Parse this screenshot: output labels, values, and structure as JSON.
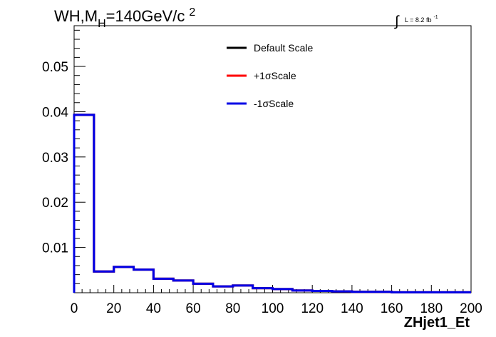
{
  "chart_data": {
    "type": "line",
    "title_parts": {
      "main": "WH,M",
      "sub": "H",
      "mid": "=140GeV/c",
      "sup": "2"
    },
    "lumi": {
      "integral": "∫",
      "text": "L = 8.2 fb",
      "sup": "-1"
    },
    "xlabel": "ZHjet1_Et",
    "ylabel": "",
    "xlim": [
      0,
      200
    ],
    "ylim": [
      0,
      0.059
    ],
    "x_ticks": [
      0,
      20,
      40,
      60,
      80,
      100,
      120,
      140,
      160,
      180,
      200
    ],
    "y_ticks": [
      0.01,
      0.02,
      0.03,
      0.04,
      0.05
    ],
    "y_tick_labels": [
      "0.01",
      "0.02",
      "0.03",
      "0.04",
      "0.05"
    ],
    "bin_edges": [
      0,
      10,
      20,
      30,
      40,
      50,
      60,
      70,
      80,
      90,
      100,
      110,
      120,
      130,
      140,
      150,
      160,
      170,
      180,
      190,
      200
    ],
    "series": [
      {
        "name": "Default Scale",
        "color": "#000000",
        "values": [
          0.0393,
          0.0047,
          0.0057,
          0.0051,
          0.0031,
          0.0027,
          0.002,
          0.0014,
          0.0016,
          0.001,
          0.0008,
          0.0005,
          0.0004,
          0.0003,
          0.0002,
          0.0002,
          0.0001,
          0.0001,
          0.0001,
          0.0001
        ]
      },
      {
        "name": "+1σScale",
        "color": "#ff0000",
        "values": [
          0.0393,
          0.0047,
          0.0057,
          0.0051,
          0.0031,
          0.0027,
          0.002,
          0.0014,
          0.0016,
          0.001,
          0.0008,
          0.0005,
          0.0004,
          0.0003,
          0.0002,
          0.0002,
          0.0001,
          0.0001,
          0.0001,
          0.0001
        ]
      },
      {
        "name": "-1σScale",
        "color": "#0000e6",
        "values": [
          0.0393,
          0.0047,
          0.0057,
          0.0051,
          0.0031,
          0.0027,
          0.002,
          0.0014,
          0.0016,
          0.001,
          0.0008,
          0.0005,
          0.0004,
          0.0003,
          0.0002,
          0.0002,
          0.0001,
          0.0001,
          0.0001,
          0.0001
        ]
      }
    ],
    "legend_position": "top-center",
    "grid": false
  }
}
